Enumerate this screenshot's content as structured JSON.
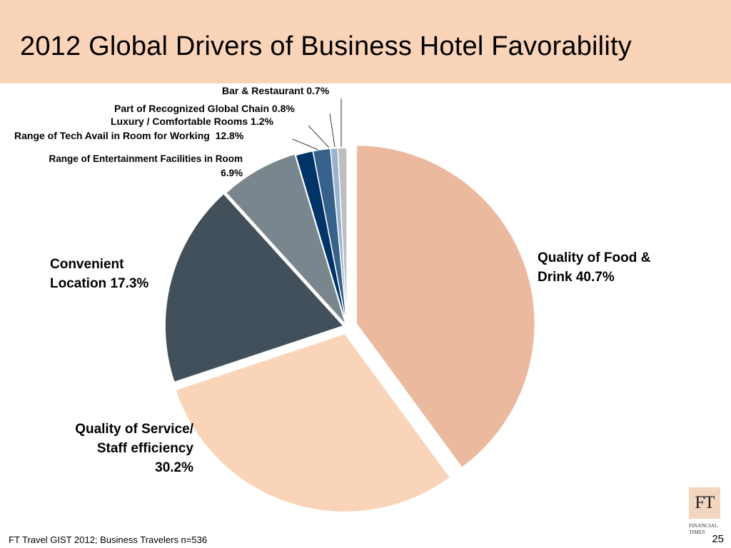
{
  "title": "2012 Global Drivers of Business Hotel Favorability",
  "chart_data": {
    "type": "pie",
    "title": "2012 Global Drivers of Business Hotel Favorability",
    "slices": [
      {
        "label": "Quality of Food & Drink",
        "value": 40.7,
        "color": "#ebb99e"
      },
      {
        "label": "Quality of Service/ Staff efficiency",
        "value": 30.2,
        "color": "#fad4b8"
      },
      {
        "label": "Convenient Location",
        "value": 17.3,
        "color": "#42505b"
      },
      {
        "label": "Range of Entertainment Facilities in Room",
        "value": 6.9,
        "color": "#7a868d"
      },
      {
        "label": "Range of Tech Avail in Room for Working",
        "value": 12.8,
        "color": "#003366"
      },
      {
        "label": "Luxury / Comfortable Rooms",
        "value": 1.2,
        "color": "#35618a"
      },
      {
        "label": "Part of Recognized Global Chain",
        "value": 0.8,
        "color": "#9bb2ce"
      },
      {
        "label": "Bar & Restaurant",
        "value": 0.7,
        "color": "#bcbec0"
      }
    ]
  },
  "labels": {
    "food": [
      "Quality of Food &",
      "Drink 40.7%"
    ],
    "location": [
      "Convenient",
      "Location 17.3%"
    ],
    "service": [
      "Quality of Service/",
      "Staff efficiency",
      "30.2%"
    ],
    "entertainment": [
      "Range of Entertainment Facilities in Room",
      "6.9%"
    ],
    "tech": "Range of Tech Avail in Room for Working  12.8%",
    "luxury": "Luxury / Comfortable Rooms 1.2%",
    "chain": "Part of Recognized Global Chain 0.8%",
    "bar": "Bar & Restaurant 0.7%"
  },
  "footer": {
    "source": "FT Travel GIST 2012; Business Travelers n=536",
    "page_number": "25"
  },
  "logo": {
    "mark": "FT",
    "caption_line1": "FINANCIAL",
    "caption_line2": "TIMES"
  }
}
